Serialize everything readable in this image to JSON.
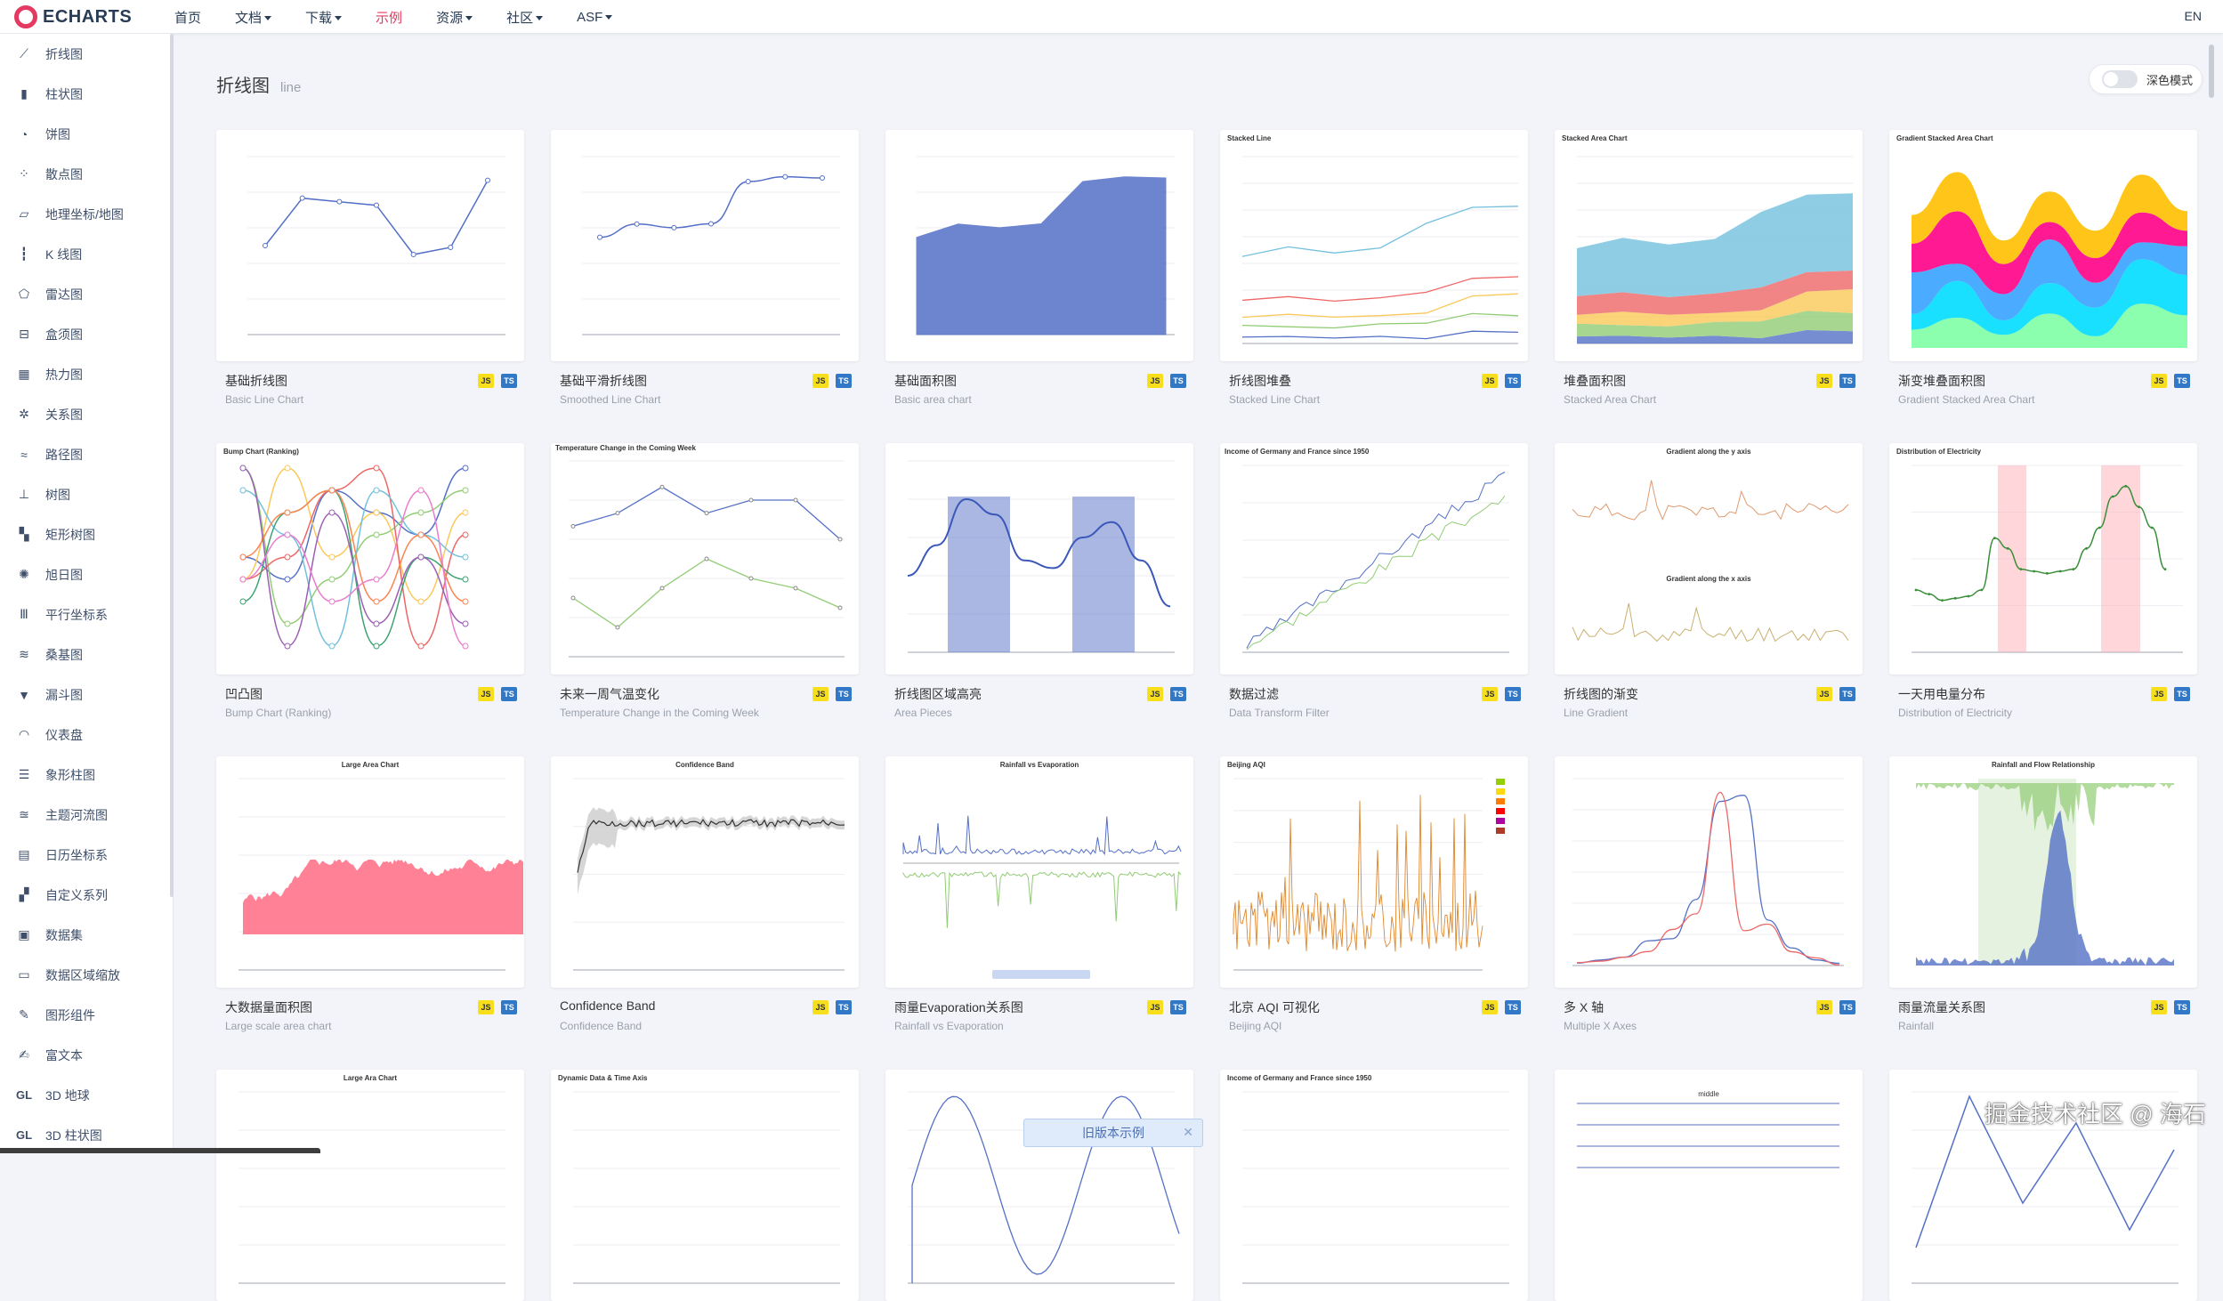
{
  "nav": {
    "logo_text": "ECHARTS",
    "items": [
      {
        "label": "首页",
        "caret": false,
        "active": false
      },
      {
        "label": "文档",
        "caret": true,
        "active": false
      },
      {
        "label": "下载",
        "caret": true,
        "active": false
      },
      {
        "label": "示例",
        "caret": false,
        "active": true
      },
      {
        "label": "资源",
        "caret": true,
        "active": false
      },
      {
        "label": "社区",
        "caret": true,
        "active": false
      },
      {
        "label": "ASF",
        "caret": true,
        "active": false
      }
    ],
    "lang": "EN"
  },
  "sidebar": {
    "items": [
      {
        "label": "折线图",
        "icon": "line-chart-icon",
        "glyph": "⟋"
      },
      {
        "label": "柱状图",
        "icon": "bar-chart-icon",
        "glyph": "▮"
      },
      {
        "label": "饼图",
        "icon": "pie-chart-icon",
        "glyph": "◔"
      },
      {
        "label": "散点图",
        "icon": "scatter-chart-icon",
        "glyph": "⁘"
      },
      {
        "label": "地理坐标/地图",
        "icon": "map-icon",
        "glyph": "▱"
      },
      {
        "label": "K 线图",
        "icon": "candlestick-icon",
        "glyph": "┇"
      },
      {
        "label": "雷达图",
        "icon": "radar-icon",
        "glyph": "⬠"
      },
      {
        "label": "盒须图",
        "icon": "boxplot-icon",
        "glyph": "⊟"
      },
      {
        "label": "热力图",
        "icon": "heatmap-icon",
        "glyph": "▦"
      },
      {
        "label": "关系图",
        "icon": "graph-icon",
        "glyph": "✲"
      },
      {
        "label": "路径图",
        "icon": "lines-icon",
        "glyph": "≈"
      },
      {
        "label": "树图",
        "icon": "tree-icon",
        "glyph": "⊥"
      },
      {
        "label": "矩形树图",
        "icon": "treemap-icon",
        "glyph": "▚"
      },
      {
        "label": "旭日图",
        "icon": "sunburst-icon",
        "glyph": "✺"
      },
      {
        "label": "平行坐标系",
        "icon": "parallel-icon",
        "glyph": "Ⅲ"
      },
      {
        "label": "桑基图",
        "icon": "sankey-icon",
        "glyph": "≋"
      },
      {
        "label": "漏斗图",
        "icon": "funnel-icon",
        "glyph": "▼"
      },
      {
        "label": "仪表盘",
        "icon": "gauge-icon",
        "glyph": "◠"
      },
      {
        "label": "象形柱图",
        "icon": "pictorial-bar-icon",
        "glyph": "☰"
      },
      {
        "label": "主题河流图",
        "icon": "theme-river-icon",
        "glyph": "≊"
      },
      {
        "label": "日历坐标系",
        "icon": "calendar-icon",
        "glyph": "▤"
      },
      {
        "label": "自定义系列",
        "icon": "custom-icon",
        "glyph": "▞"
      },
      {
        "label": "数据集",
        "icon": "dataset-icon",
        "glyph": "▣"
      },
      {
        "label": "数据区域缩放",
        "icon": "datazoom-icon",
        "glyph": "▭"
      },
      {
        "label": "图形组件",
        "icon": "graphic-icon",
        "glyph": "✎"
      },
      {
        "label": "富文本",
        "icon": "rich-text-icon",
        "glyph": "✍"
      },
      {
        "label": "3D 地球",
        "icon": "globe-3d-icon",
        "glyph": "GL"
      },
      {
        "label": "3D 柱状图",
        "icon": "bar-3d-icon",
        "glyph": "GL"
      }
    ]
  },
  "header": {
    "title": "折线图",
    "subtitle": "line",
    "dark_mode_label": "深色模式"
  },
  "cards": [
    {
      "cn": "基础折线图",
      "en": "Basic Line Chart",
      "js": "JS",
      "ts": "TS"
    },
    {
      "cn": "基础平滑折线图",
      "en": "Smoothed Line Chart",
      "js": "JS",
      "ts": "TS"
    },
    {
      "cn": "基础面积图",
      "en": "Basic area chart",
      "js": "JS",
      "ts": "TS"
    },
    {
      "cn": "折线图堆叠",
      "en": "Stacked Line Chart",
      "js": "JS",
      "ts": "TS"
    },
    {
      "cn": "堆叠面积图",
      "en": "Stacked Area Chart",
      "js": "JS",
      "ts": "TS"
    },
    {
      "cn": "渐变堆叠面积图",
      "en": "Gradient Stacked Area Chart",
      "js": "JS",
      "ts": "TS"
    },
    {
      "cn": "凹凸图",
      "en": "Bump Chart (Ranking)",
      "js": "JS",
      "ts": "TS"
    },
    {
      "cn": "未来一周气温变化",
      "en": "Temperature Change in the Coming Week",
      "js": "JS",
      "ts": "TS"
    },
    {
      "cn": "折线图区域高亮",
      "en": "Area Pieces",
      "js": "JS",
      "ts": "TS"
    },
    {
      "cn": "数据过滤",
      "en": "Data Transform Filter",
      "js": "JS",
      "ts": "TS"
    },
    {
      "cn": "折线图的渐变",
      "en": "Line Gradient",
      "js": "JS",
      "ts": "TS"
    },
    {
      "cn": "一天用电量分布",
      "en": "Distribution of Electricity",
      "js": "JS",
      "ts": "TS"
    },
    {
      "cn": "大数据量面积图",
      "en": "Large scale area chart",
      "js": "JS",
      "ts": "TS"
    },
    {
      "cn": "Confidence Band",
      "en": "Confidence Band",
      "js": "JS",
      "ts": "TS"
    },
    {
      "cn": "雨量Evaporation关系图",
      "en": "Rainfall vs Evaporation",
      "js": "JS",
      "ts": "TS"
    },
    {
      "cn": "北京 AQI 可视化",
      "en": "Beijing AQI",
      "js": "JS",
      "ts": "TS"
    },
    {
      "cn": "多 X 轴",
      "en": "Multiple X Axes",
      "js": "JS",
      "ts": "TS"
    },
    {
      "cn": "雨量流量关系图",
      "en": "Rainfall",
      "js": "JS",
      "ts": "TS"
    },
    {
      "cn": "",
      "en": "",
      "js": "",
      "ts": ""
    },
    {
      "cn": "",
      "en": "",
      "js": "",
      "ts": ""
    },
    {
      "cn": "",
      "en": "",
      "js": "",
      "ts": ""
    },
    {
      "cn": "",
      "en": "",
      "js": "",
      "ts": ""
    },
    {
      "cn": "",
      "en": "",
      "js": "",
      "ts": ""
    },
    {
      "cn": "",
      "en": "",
      "js": "",
      "ts": ""
    }
  ],
  "thumb_titles": {
    "stacked_line": "Stacked Line",
    "stacked_area": "Stacked Area Chart",
    "gradient_stacked": "Gradient Stacked Area Chart",
    "bump": "Bump Chart (Ranking)",
    "temperature": "Temperature Change in the Coming Week",
    "income": "Income of Germany and France since 1950",
    "gradient_y": "Gradient along the y axis",
    "gradient_x": "Gradient along the x axis",
    "electricity": "Distribution of Electricity",
    "large_area": "Large Area Chart",
    "confidence": "Confidence Band",
    "rain_evap": "Rainfall vs Evaporation",
    "beijing_aqi": "Beijing AQI",
    "rain_flow": "Rainfall and Flow Relationship",
    "large_ara": "Large Ara Chart",
    "dynamic": "Dynamic Data & Time Axis",
    "income2": "Income of Germany and France since 1950",
    "middle": "middle"
  },
  "overlay": {
    "old_version_label": "旧版本示例",
    "close_glyph": "✕",
    "watermark": "掘金技术社区 @ 海石"
  },
  "colors": {
    "brand": "#e43961",
    "nav_text": "#293c55",
    "series_blue": "#5470c6",
    "series_green": "#91cc75",
    "series_yellow": "#fac858",
    "series_red": "#ee6666",
    "series_cyan": "#73c0de",
    "ts_badge": "#3178c6",
    "js_badge": "#f7df1e"
  }
}
